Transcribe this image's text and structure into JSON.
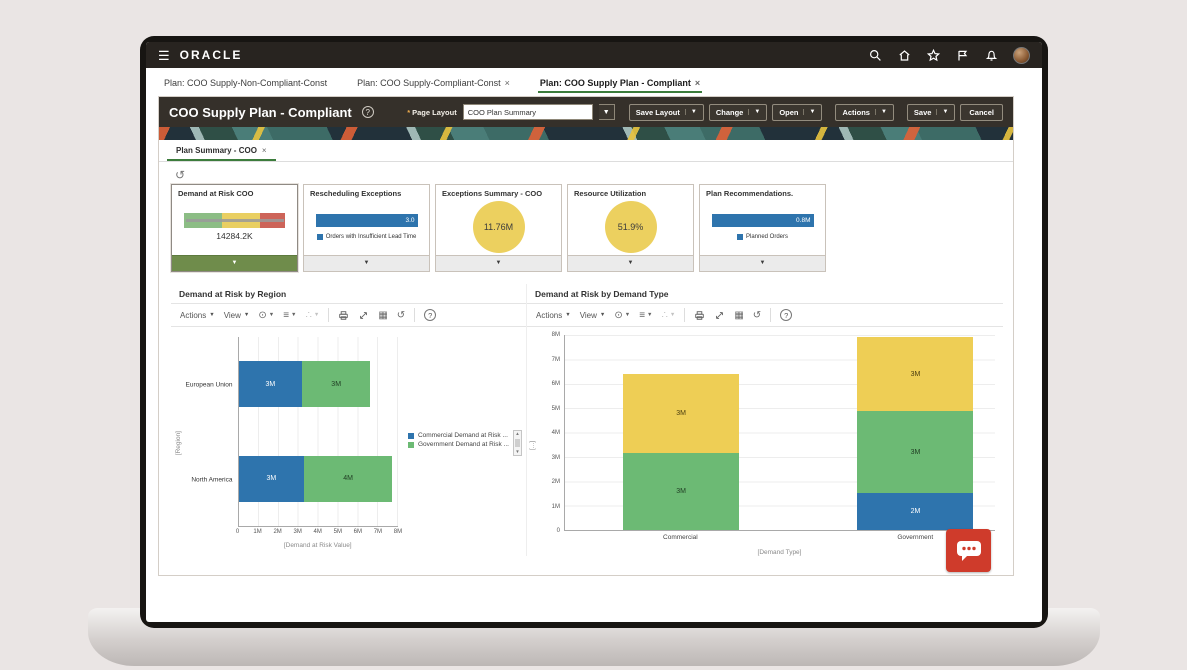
{
  "topbar": {
    "brand": "ORACLE",
    "icons": [
      "menu",
      "search",
      "home",
      "favorites",
      "flag",
      "notifications",
      "avatar"
    ]
  },
  "window_tabs": [
    {
      "label": "Plan: COO Supply-Non-Compliant-Const",
      "close": ""
    },
    {
      "label": "Plan: COO Supply-Compliant-Const",
      "close": "×"
    },
    {
      "label": "Plan: COO Supply Plan - Compliant",
      "close": "×"
    }
  ],
  "plan_header": {
    "title": "COO Supply Plan - Compliant",
    "help_glyph": "?",
    "page_layout_required_mark": "*",
    "page_layout_label": "Page Layout",
    "page_layout_value": "COO Plan Summary",
    "caret": "▼",
    "buttons": {
      "save_layout": "Save Layout",
      "change": "Change",
      "open": "Open",
      "actions": "Actions",
      "save": "Save",
      "cancel": "Cancel"
    }
  },
  "subtab": {
    "label": "Plan Summary - COO",
    "close": "×"
  },
  "tiles": [
    {
      "title": "Demand at Risk COO",
      "value": "14284.2K",
      "footer_glyph": "▼",
      "footer_color": "#6f8c4b",
      "segments": [
        {
          "color": "#8cbd85",
          "pct": 38
        },
        {
          "color": "#e9cf62",
          "pct": 37
        },
        {
          "color": "#cd6459",
          "pct": 25
        }
      ]
    },
    {
      "title": "Rescheduling Exceptions",
      "bar_label": "3.0",
      "bar_color": "#2e74ad",
      "legend": "Orders with Insufficient Lead Time",
      "footer_glyph": "▼"
    },
    {
      "title": "Exceptions Summary - COO",
      "value": "11.76M",
      "circle_color": "#ecd05f",
      "footer_glyph": "▼"
    },
    {
      "title": "Resource Utilization",
      "value": "51.9%",
      "circle_color": "#ecd05f",
      "footer_glyph": "▼"
    },
    {
      "title": "Plan Recommendations.",
      "bar_label": "0.8M",
      "bar_color": "#2e74ad",
      "legend": "Planned Orders",
      "footer_glyph": "▼"
    }
  ],
  "chart_toolbar": {
    "actions": "Actions",
    "view": "View"
  },
  "chart_data": [
    {
      "type": "bar",
      "orientation": "horizontal",
      "stacked": true,
      "title": "Demand at Risk by Region",
      "categories": [
        "European Union",
        "North America"
      ],
      "series": [
        {
          "name": "Commercial Demand at Risk ...",
          "color": "#2e74ad",
          "label_color": "#ffffff",
          "values": [
            3.2,
            3.3
          ],
          "labels": [
            "3M",
            "3M"
          ]
        },
        {
          "name": "Government Demand at Risk ...",
          "color": "#6cba74",
          "label_color": "#1f3b22",
          "values": [
            3.4,
            4.4
          ],
          "labels": [
            "3M",
            "4M"
          ]
        }
      ],
      "xlabel": "[Demand at Risk Value]",
      "ylabel": "[Region]",
      "xlim": [
        0,
        8
      ],
      "xticks": [
        "0",
        "1M",
        "2M",
        "3M",
        "4M",
        "5M",
        "6M",
        "7M",
        "8M"
      ],
      "legend_position": "right",
      "grid": true
    },
    {
      "type": "bar",
      "orientation": "vertical",
      "stacked": true,
      "title": "Demand at Risk by Demand Type",
      "categories": [
        "Commercial",
        "Government"
      ],
      "stacks": [
        {
          "category": "Commercial",
          "segments": [
            {
              "color": "#6cba74",
              "label_color": "#1f3b22",
              "value": 3.15,
              "label": "3M"
            },
            {
              "color": "#eece55",
              "label_color": "#4a3d10",
              "value": 3.25,
              "label": "3M"
            }
          ]
        },
        {
          "category": "Government",
          "segments": [
            {
              "color": "#2e74ad",
              "label_color": "#ffffff",
              "value": 1.5,
              "label": "2M"
            },
            {
              "color": "#6cba74",
              "label_color": "#1f3b22",
              "value": 3.4,
              "label": "3M"
            },
            {
              "color": "#eece55",
              "label_color": "#4a3d10",
              "value": 3.0,
              "label": "3M"
            }
          ]
        }
      ],
      "xlabel": "[Demand Type]",
      "ylabel": "[...]",
      "ylim": [
        0,
        8
      ],
      "yticks": [
        "0",
        "1M",
        "2M",
        "3M",
        "4M",
        "5M",
        "6M",
        "7M",
        "8M"
      ],
      "grid": true
    }
  ],
  "chat_button": {
    "icon": "chat-bubble"
  }
}
